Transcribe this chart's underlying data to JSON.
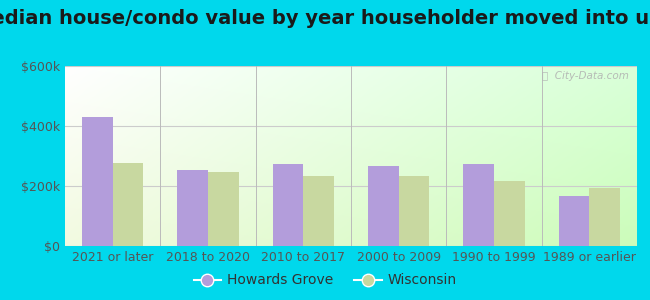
{
  "title": "Median house/condo value by year householder moved into unit",
  "categories": [
    "2021 or later",
    "2018 to 2020",
    "2010 to 2017",
    "2000 to 2009",
    "1990 to 1999",
    "1989 or earlier"
  ],
  "howards_grove": [
    430000,
    255000,
    272000,
    268000,
    272000,
    168000
  ],
  "wisconsin": [
    278000,
    248000,
    232000,
    235000,
    218000,
    193000
  ],
  "howards_grove_color": "#b39ddb",
  "wisconsin_color": "#c8d8a0",
  "bar_width": 0.32,
  "ylim": [
    0,
    600000
  ],
  "yticks": [
    0,
    200000,
    400000,
    600000
  ],
  "ytick_labels": [
    "$0",
    "$200k",
    "$400k",
    "$600k"
  ],
  "bg_outer": "#00d8ec",
  "legend_howards_grove": "Howards Grove",
  "legend_wisconsin": "Wisconsin",
  "watermark": "ⓘ  City-Data.com",
  "title_fontsize": 14,
  "tick_fontsize": 9,
  "legend_fontsize": 10,
  "grid_color": "#cccccc",
  "separator_color": "#bbbbbb"
}
